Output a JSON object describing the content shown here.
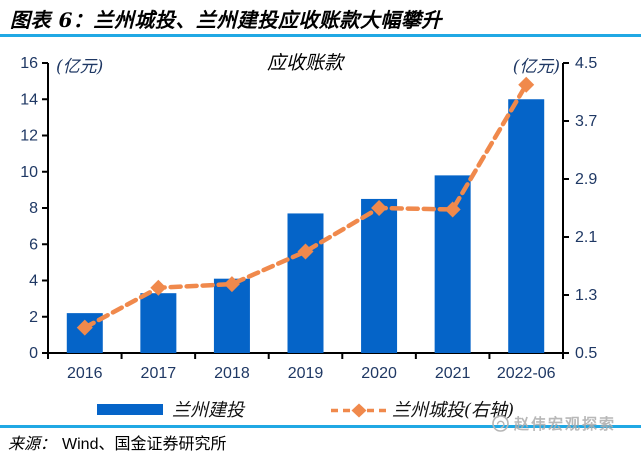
{
  "header": {
    "title": "图表 6：兰州城投、兰州建投应收账款大幅攀升"
  },
  "chart_data": {
    "type": "bar",
    "subtype": "bar-plus-dashed-line-dual-axis",
    "title": "应收账款",
    "categories": [
      "2016",
      "2017",
      "2018",
      "2019",
      "2020",
      "2021",
      "2022-06"
    ],
    "series": [
      {
        "name": "兰州建投",
        "type": "bar",
        "axis": "left",
        "values": [
          2.2,
          3.3,
          4.1,
          7.7,
          8.5,
          9.8,
          14.0
        ]
      },
      {
        "name": "兰州城投(右轴)",
        "type": "line",
        "axis": "right",
        "style": "dashed-with-diamond-markers",
        "values": [
          0.85,
          1.4,
          1.45,
          1.9,
          2.5,
          2.48,
          4.2
        ]
      }
    ],
    "left_axis": {
      "label": "(亿元)",
      "min": 0,
      "max": 16,
      "step": 2
    },
    "right_axis": {
      "label": "(亿元)",
      "min": 0.5,
      "max": 4.5,
      "step": 0.8
    },
    "grid": "off",
    "legend_position": "bottom"
  },
  "source": {
    "prefix": "来源：",
    "text": "Wind、国金证券研究所"
  },
  "watermark": {
    "text": "赵伟宏观探索"
  },
  "colors": {
    "bar": "#0564C8",
    "line": "#F0894C",
    "rule": "#20A8E4",
    "axis_text": "#1F3864",
    "axis_line": "#000000",
    "watermark": "#ACACAC"
  }
}
